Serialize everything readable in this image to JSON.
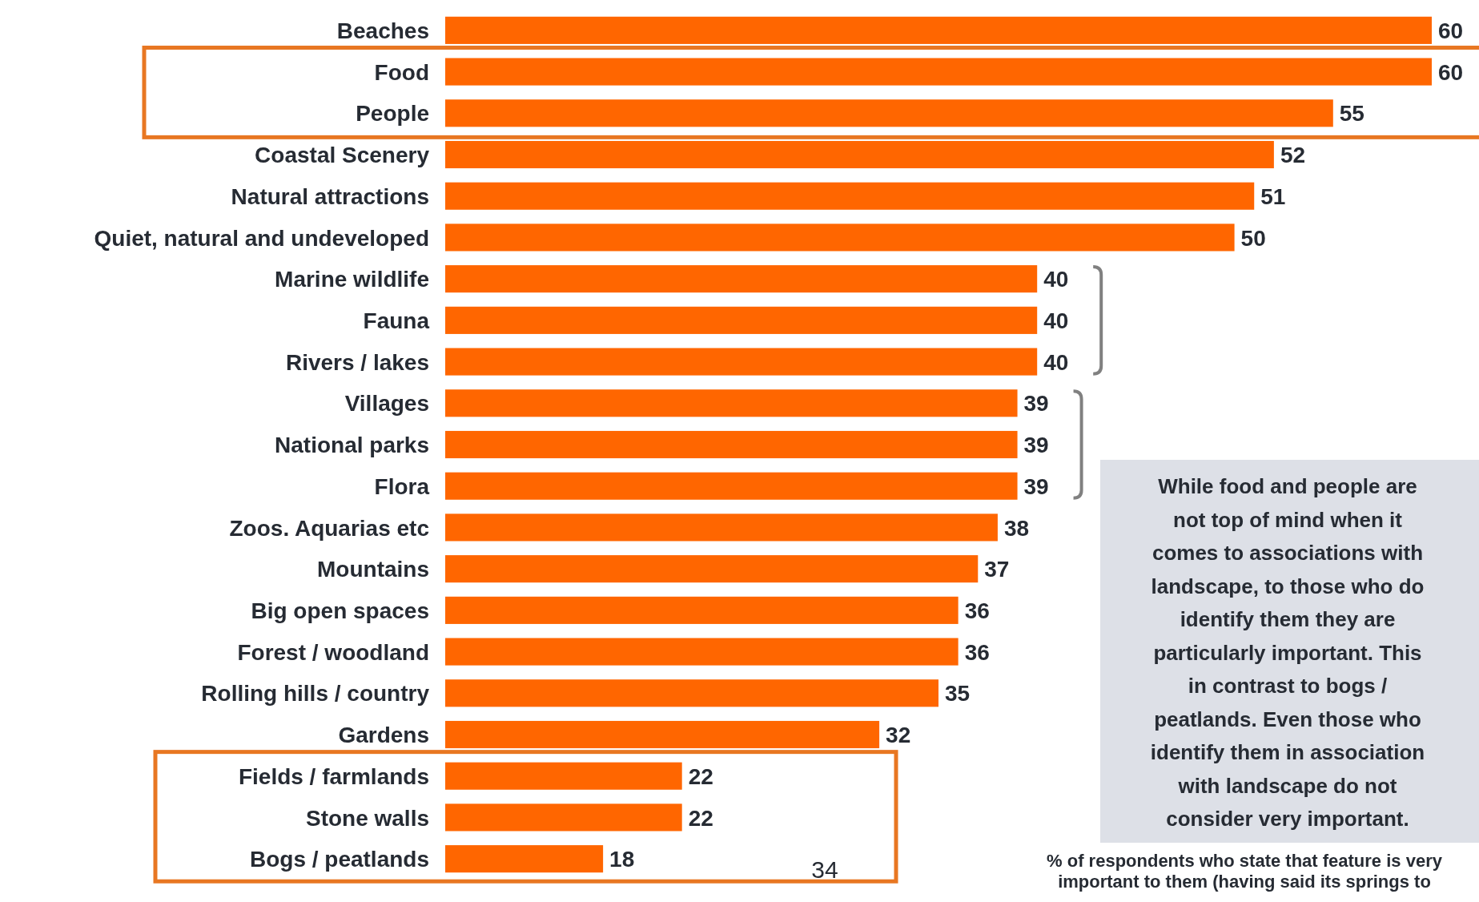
{
  "chart_data": {
    "type": "bar",
    "orientation": "horizontal",
    "categories": [
      "Beaches",
      "Food",
      "People",
      "Coastal Scenery",
      "Natural attractions",
      "Quiet, natural and undeveloped",
      "Marine wildlife",
      "Fauna",
      "Rivers / lakes",
      "Villages",
      "National parks",
      "Flora",
      "Zoos. Aquarias etc",
      "Mountains",
      "Big open spaces",
      "Forest / woodland",
      "Rolling hills / country",
      "Gardens",
      "Fields / farmlands",
      "Stone walls",
      "Bogs / peatlands"
    ],
    "values": [
      60,
      60,
      55,
      52,
      51,
      50,
      40,
      40,
      40,
      39,
      39,
      39,
      38,
      37,
      36,
      36,
      35,
      32,
      22,
      22,
      18
    ],
    "color": "#ff6600",
    "data_labels": true,
    "xlim": [
      10,
      60
    ],
    "annotations": [
      "While food and people are\nnot top of mind when it\ncomes to associations with\nlandscape, to those who do\nidentify them they are\nparticularly important. This\nin contrast to bogs /\npeatlands. Even those who\nidentify them in association\nwith landscape do not\nconsider very important.",
      "% of respondents who state that feature is very\nimportant to them (having said its springs to",
      "34"
    ]
  }
}
